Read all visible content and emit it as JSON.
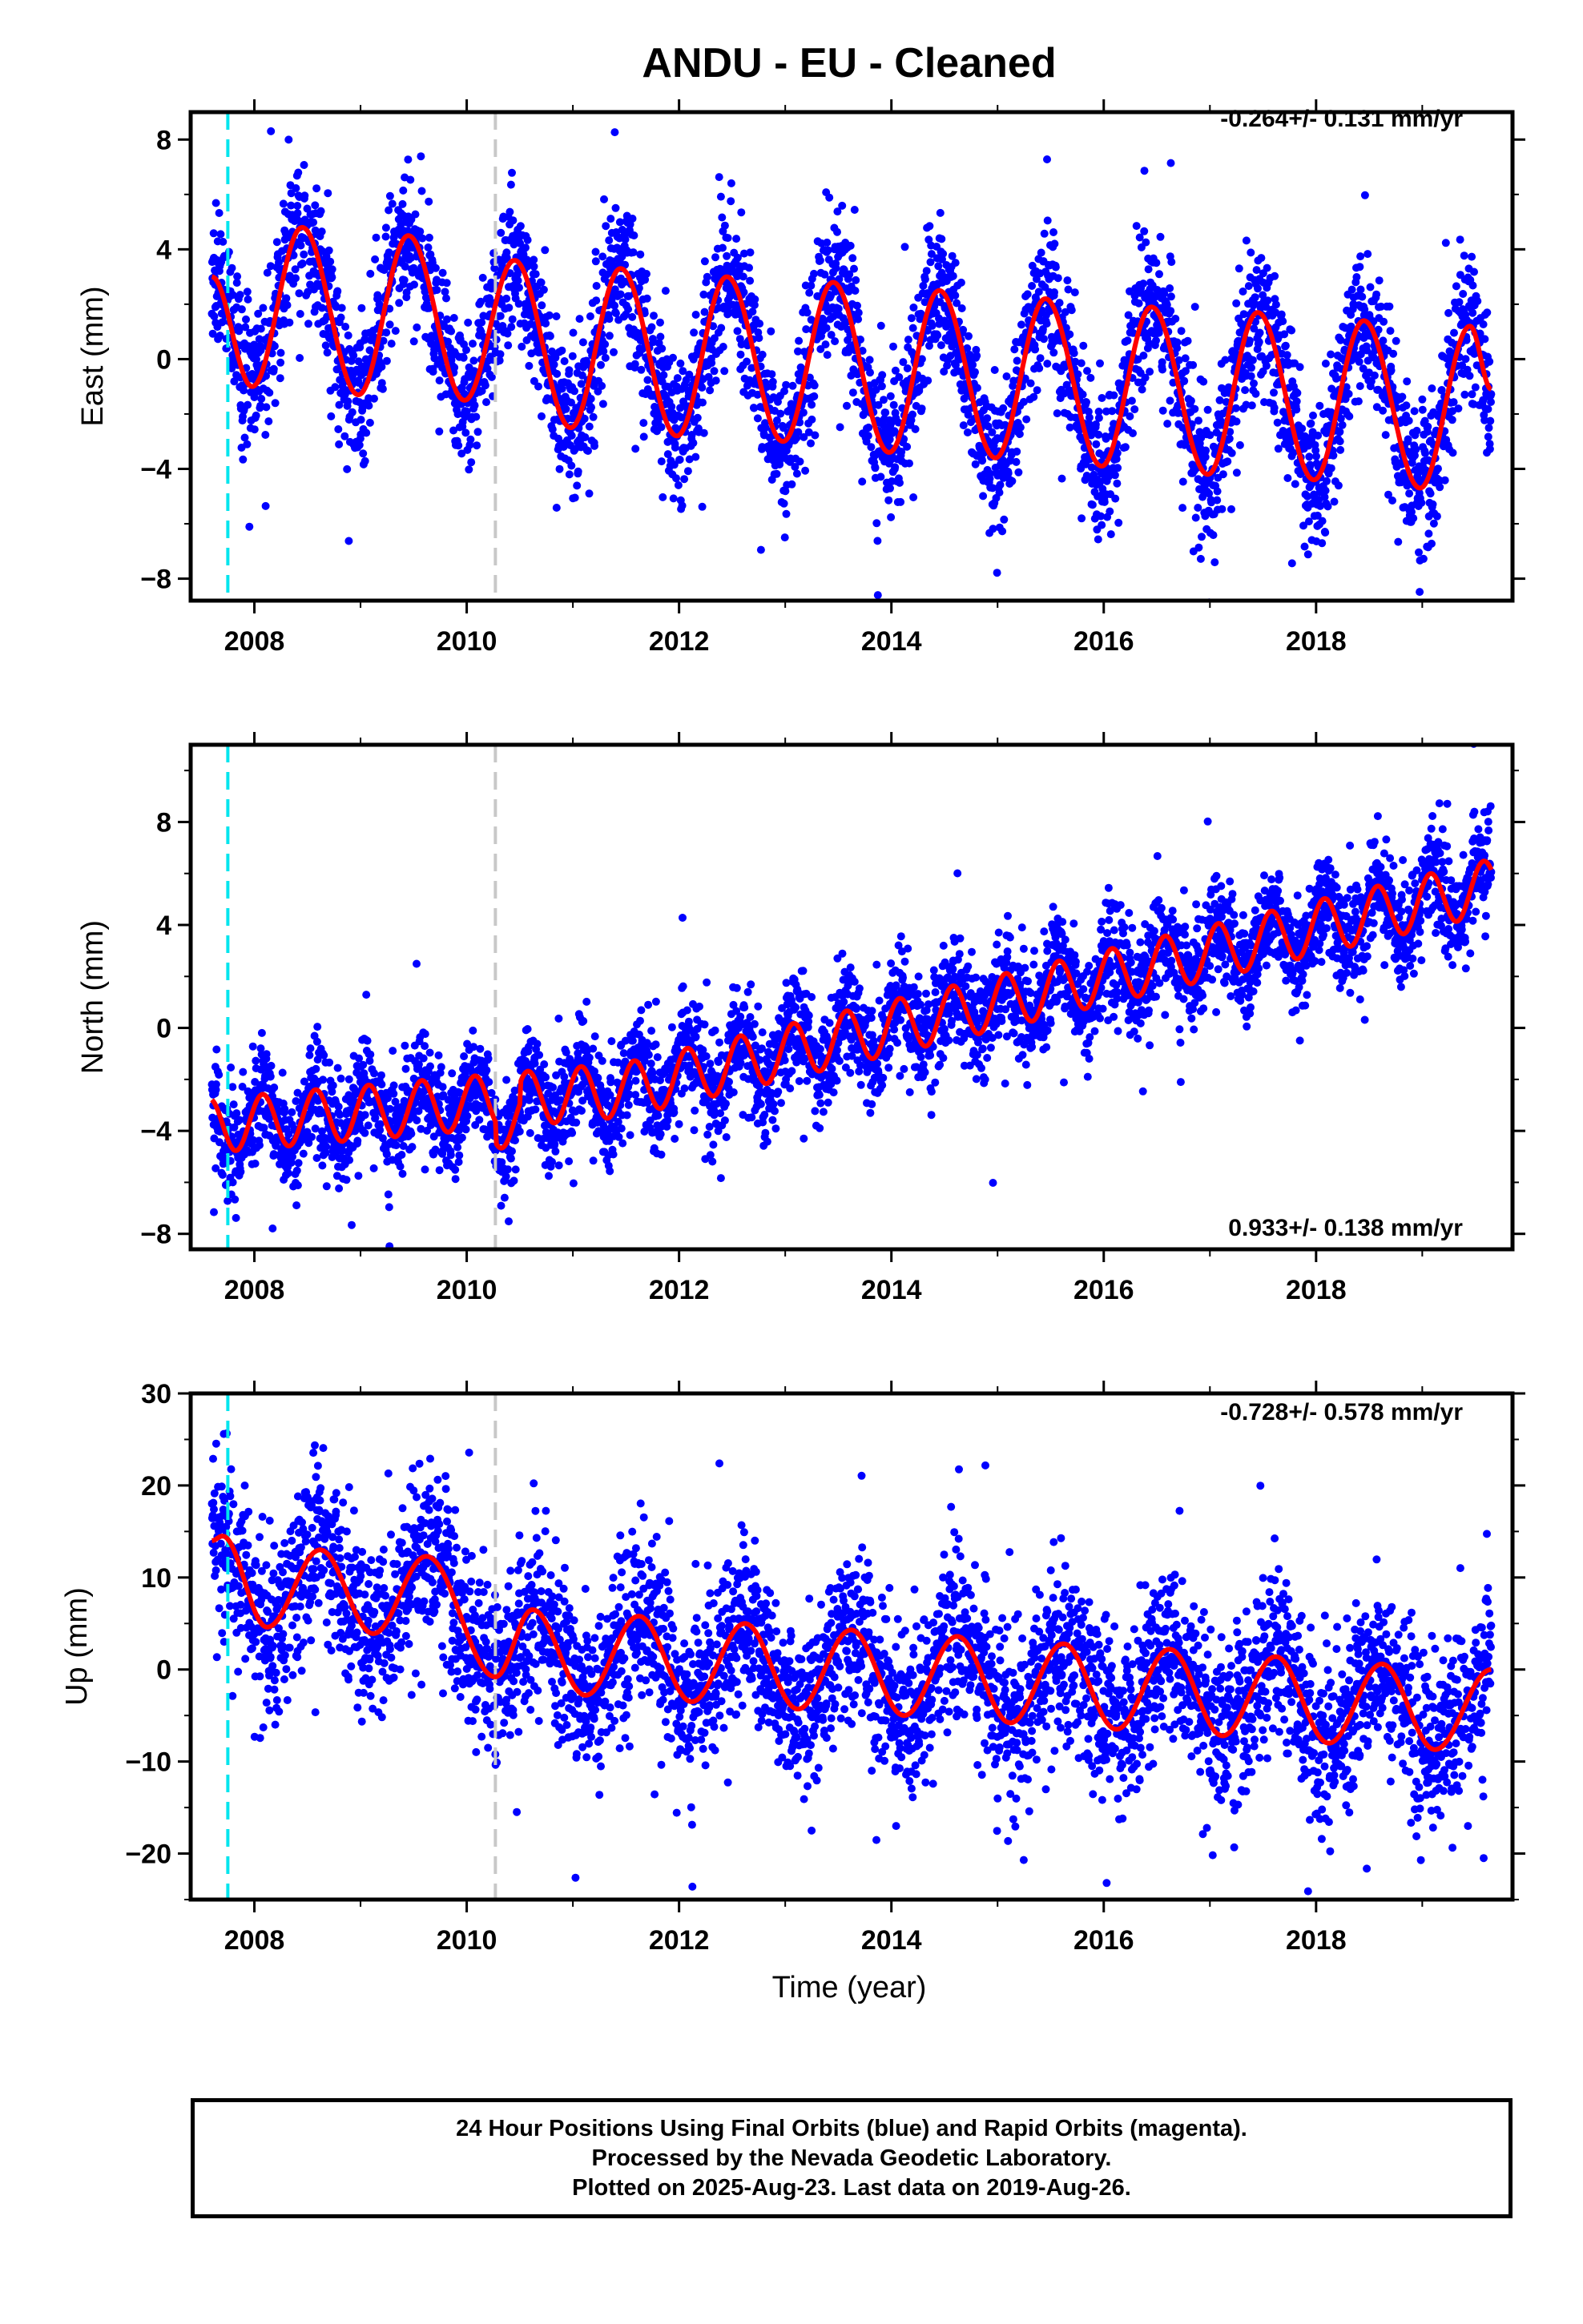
{
  "figure": {
    "title": "ANDU  - EU - Cleaned",
    "xlabel": "Time (year)",
    "footer": [
      "24 Hour Positions Using Final Orbits (blue) and Rapid Orbits (magenta).",
      "Processed by the Nevada Geodetic Laboratory.",
      "Plotted on 2025-Aug-23. Last data on 2019-Aug-26."
    ]
  },
  "colors": {
    "final_orbits": "#0000ff",
    "model_fit": "#ff0000",
    "equipment_change": "#00e5ee",
    "step_marker": "#c8c8c8"
  },
  "chart_data": [
    {
      "type": "scatter",
      "ylabel": "East (mm)",
      "rate_label": "-0.264+/- 0.131 mm/yr",
      "xlim": [
        2007.4,
        2019.85
      ],
      "ylim": [
        -8.8,
        9
      ],
      "yticks": [
        -8,
        -4,
        0,
        4,
        8
      ],
      "xticks": [
        2008,
        2010,
        2012,
        2014,
        2016,
        2018
      ],
      "data_start": 2007.6,
      "data_end": 2019.65,
      "markers": [
        {
          "x": 2007.75,
          "kind": "equipment_change"
        },
        {
          "x": 2010.27,
          "kind": "step"
        }
      ],
      "fit_trough_times": [
        2007.98,
        2008.98,
        2009.98,
        2010.98,
        2011.98,
        2012.98,
        2013.98,
        2014.98,
        2015.98,
        2016.98,
        2017.98,
        2018.98
      ],
      "fit_trough_values": [
        -1.0,
        -1.3,
        -1.5,
        -2.5,
        -2.8,
        -3.0,
        -3.4,
        -3.6,
        -3.9,
        -4.2,
        -4.4,
        -4.7
      ],
      "fit_peak_times": [
        2008.45,
        2009.45,
        2010.45,
        2011.45,
        2012.45,
        2013.45,
        2014.45,
        2015.45,
        2016.45,
        2017.45,
        2018.45,
        2019.45
      ],
      "fit_peak_values": [
        4.8,
        4.5,
        3.6,
        3.3,
        3.0,
        2.8,
        2.5,
        2.2,
        1.9,
        1.7,
        1.4,
        1.2
      ],
      "fit_start_value": 3.0,
      "fit_end_value": -1.1,
      "scatter_spread": 1.3
    },
    {
      "type": "scatter",
      "ylabel": "North (mm)",
      "rate_label": "0.933+/- 0.138 mm/yr",
      "xlim": [
        2007.4,
        2019.85
      ],
      "ylim": [
        -8.6,
        11
      ],
      "yticks": [
        -8,
        -4,
        0,
        4,
        8
      ],
      "xticks": [
        2008,
        2010,
        2012,
        2014,
        2016,
        2018
      ],
      "data_start": 2007.6,
      "data_end": 2019.65,
      "markers": [
        {
          "x": 2007.75,
          "kind": "equipment_change"
        },
        {
          "x": 2010.27,
          "kind": "step"
        }
      ],
      "fit_trend_start": -3.8,
      "fit_trend_end": 5.5,
      "fit_trend_knee": 2011.5,
      "fit_trend_knee_value": -2.4,
      "fit_half_amplitude": 1.05,
      "fit_period": 0.5,
      "scatter_spread": 1.0
    },
    {
      "type": "scatter",
      "ylabel": "Up (mm)",
      "rate_label": "-0.728+/- 0.578 mm/yr",
      "xlim": [
        2007.4,
        2019.85
      ],
      "ylim": [
        -25,
        30
      ],
      "yticks": [
        -20,
        -10,
        0,
        10,
        20,
        30
      ],
      "xticks": [
        2008,
        2010,
        2012,
        2014,
        2016,
        2018
      ],
      "data_start": 2007.6,
      "data_end": 2019.65,
      "markers": [
        {
          "x": 2007.75,
          "kind": "equipment_change"
        },
        {
          "x": 2010.27,
          "kind": "step"
        }
      ],
      "fit_peak_times": [
        2007.7,
        2008.62,
        2009.62,
        2010.62,
        2011.62,
        2012.62,
        2013.62,
        2014.62,
        2015.62,
        2016.62,
        2017.62,
        2018.62
      ],
      "fit_peak_values": [
        14.5,
        13.0,
        12.3,
        6.5,
        5.8,
        5.0,
        4.3,
        3.6,
        2.8,
        2.2,
        1.4,
        0.6
      ],
      "fit_trough_times": [
        2008.12,
        2009.12,
        2010.27,
        2011.12,
        2012.12,
        2013.12,
        2014.12,
        2015.12,
        2016.12,
        2017.12,
        2018.12,
        2019.12
      ],
      "fit_trough_values": [
        4.6,
        3.9,
        -0.8,
        -2.8,
        -3.5,
        -4.3,
        -5.0,
        -5.8,
        -6.5,
        -7.2,
        -8.0,
        -8.7
      ],
      "fit_end_value": 0.0,
      "scatter_spread": 4.5
    }
  ]
}
